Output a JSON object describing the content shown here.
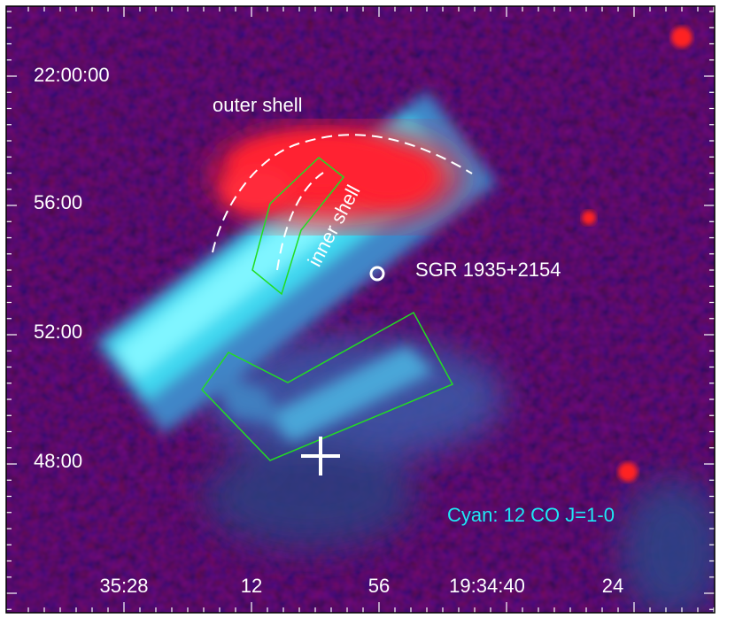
{
  "axes": {
    "y_labels": [
      "22:00:00",
      "56:00",
      "52:00",
      "48:00"
    ],
    "x_labels": [
      "35:28",
      "12",
      "56",
      "19:34:40",
      "24"
    ]
  },
  "annotations": {
    "outer_shell": "outer shell",
    "inner_shell": "inner shell",
    "source": "SGR 1935+2154",
    "legend": "Cyan: 12 CO J=1-0"
  }
}
